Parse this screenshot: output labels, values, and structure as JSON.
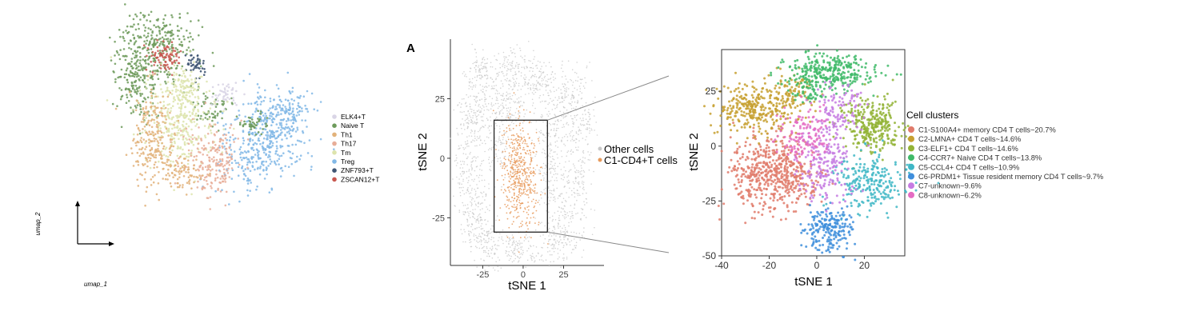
{
  "colors": {
    "ELK4+T": "#d9d5e6",
    "Naive T": "#6d9a5b",
    "Th1": "#e2b27a",
    "Th17": "#e7ad98",
    "Tm": "#dde4ad",
    "Treg": "#82b8e6",
    "ZNF793+T": "#3f5573",
    "ZSCAN12+T": "#c8574f",
    "other": "#c9c9c9",
    "cd4": "#e79a5c",
    "c1": "#e07b6b",
    "c2": "#c7a030",
    "c3": "#92b335",
    "c4": "#3fba68",
    "c5": "#3fb7c6",
    "c6": "#3f8fdc",
    "c7": "#c57be2",
    "c8": "#e46cc3"
  },
  "panel_label": "A",
  "chart_data": [
    {
      "type": "scatter",
      "xlabel": "umap_1",
      "ylabel": "umap_2",
      "legend_position": "right",
      "series": [
        {
          "name": "ELK4+T",
          "color": "#d9d5e6"
        },
        {
          "name": "Naive T",
          "color": "#6d9a5b"
        },
        {
          "name": "Th1",
          "color": "#e2b27a"
        },
        {
          "name": "Th17",
          "color": "#e7ad98"
        },
        {
          "name": "Tm",
          "color": "#dde4ad"
        },
        {
          "name": "Treg",
          "color": "#82b8e6"
        },
        {
          "name": "ZNF793+T",
          "color": "#3f5573"
        },
        {
          "name": "ZSCAN12+T",
          "color": "#c8574f"
        }
      ]
    },
    {
      "type": "scatter",
      "xlabel": "tSNE 1",
      "ylabel": "tSNE 2",
      "xticks": [
        -25,
        0,
        25
      ],
      "yticks": [
        25,
        0,
        -25
      ],
      "xlim": [
        -45,
        50
      ],
      "ylim": [
        -45,
        50
      ],
      "highlight_box": {
        "x": [
          -18,
          15
        ],
        "y": [
          -31,
          16
        ]
      },
      "legend_position": "right",
      "series": [
        {
          "name": "Other cells",
          "color": "#c9c9c9"
        },
        {
          "name": "C1-CD4+T cells",
          "color": "#e79a5c"
        }
      ]
    },
    {
      "type": "scatter",
      "xlabel": "tSNE 1",
      "ylabel": "tSNE 2",
      "xticks": [
        -40,
        -20,
        0,
        20
      ],
      "yticks": [
        25,
        0,
        -25,
        -50
      ],
      "xlim": [
        -40,
        37
      ],
      "ylim": [
        -50,
        44
      ],
      "legend_title": "Cell clusters",
      "legend_position": "right",
      "series": [
        {
          "name": "C1-S100A4+ memory CD4 T cells~20.7%",
          "color": "#e07b6b"
        },
        {
          "name": "C2-LMNA+ CD4 T cells~14.6%",
          "color": "#c7a030"
        },
        {
          "name": "C3-ELF1+ CD4 T cells~14.6%",
          "color": "#92b335"
        },
        {
          "name": "C4-CCR7+ Naive CD4 T cells~13.8%",
          "color": "#3fba68"
        },
        {
          "name": "C5-CCL4+ CD4 T cells~10.9%",
          "color": "#3fb7c6"
        },
        {
          "name": "C6-PRDM1+ Tissue resident memory CD4 T cells~9.7%",
          "color": "#3f8fdc"
        },
        {
          "name": "C7-unknown~9.6%",
          "color": "#c57be2"
        },
        {
          "name": "C8-unknown~6.2%",
          "color": "#e46cc3"
        }
      ]
    }
  ]
}
